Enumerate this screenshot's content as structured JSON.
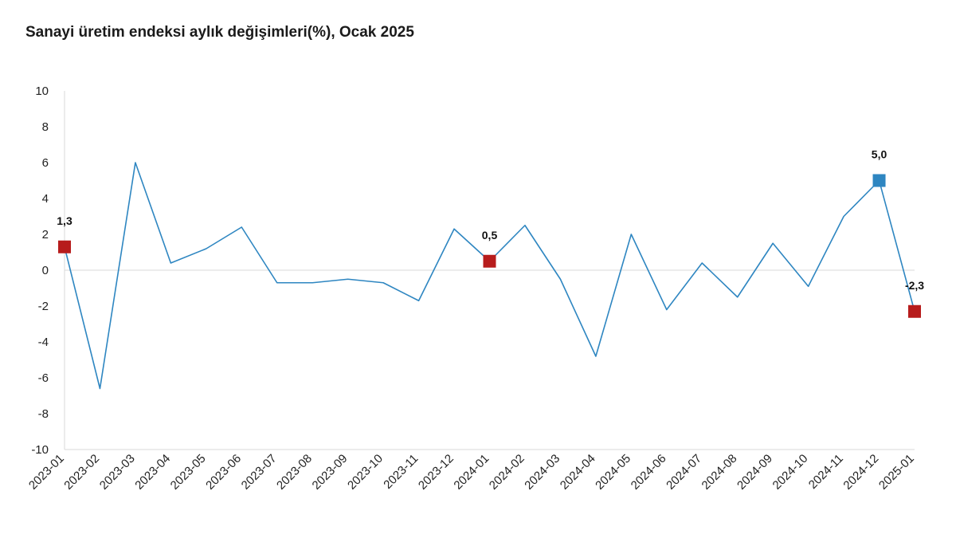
{
  "chart_data": {
    "type": "line",
    "title": "Sanayi üretim endeksi aylık değişimleri(%), Ocak 2025",
    "xlabel": "",
    "ylabel": "",
    "ylim": [
      -10,
      10
    ],
    "yticks": [
      "10",
      "8",
      "6",
      "4",
      "2",
      "0",
      "-2",
      "-4",
      "-6",
      "-8",
      "-10"
    ],
    "categories": [
      "2023-01",
      "2023-02",
      "2023-03",
      "2023-04",
      "2023-05",
      "2023-06",
      "2023-07",
      "2023-08",
      "2023-09",
      "2023-10",
      "2023-11",
      "2023-12",
      "2024-01",
      "2024-02",
      "2024-03",
      "2024-04",
      "2024-05",
      "2024-06",
      "2024-07",
      "2024-08",
      "2024-09",
      "2024-10",
      "2024-11",
      "2024-12",
      "2025-01"
    ],
    "series": [
      {
        "values": [
          1.3,
          -6.6,
          6.0,
          0.4,
          1.2,
          2.4,
          -0.7,
          -0.7,
          -0.5,
          -0.7,
          -1.7,
          2.3,
          0.5,
          2.5,
          -0.5,
          -4.8,
          2.0,
          -2.2,
          0.4,
          -1.5,
          1.5,
          -0.9,
          3.0,
          5.0,
          -2.3
        ],
        "color": "#2e86c1"
      }
    ],
    "highlights": [
      {
        "category": "2023-01",
        "value": 1.3,
        "label": "1,3",
        "color": "#b71c1c"
      },
      {
        "category": "2024-01",
        "value": 0.5,
        "label": "0,5",
        "color": "#b71c1c"
      },
      {
        "category": "2024-12",
        "value": 5.0,
        "label": "5,0",
        "color": "#2e86c1"
      },
      {
        "category": "2025-01",
        "value": -2.3,
        "label": "-2,3",
        "color": "#b71c1c"
      }
    ],
    "grid": false
  }
}
